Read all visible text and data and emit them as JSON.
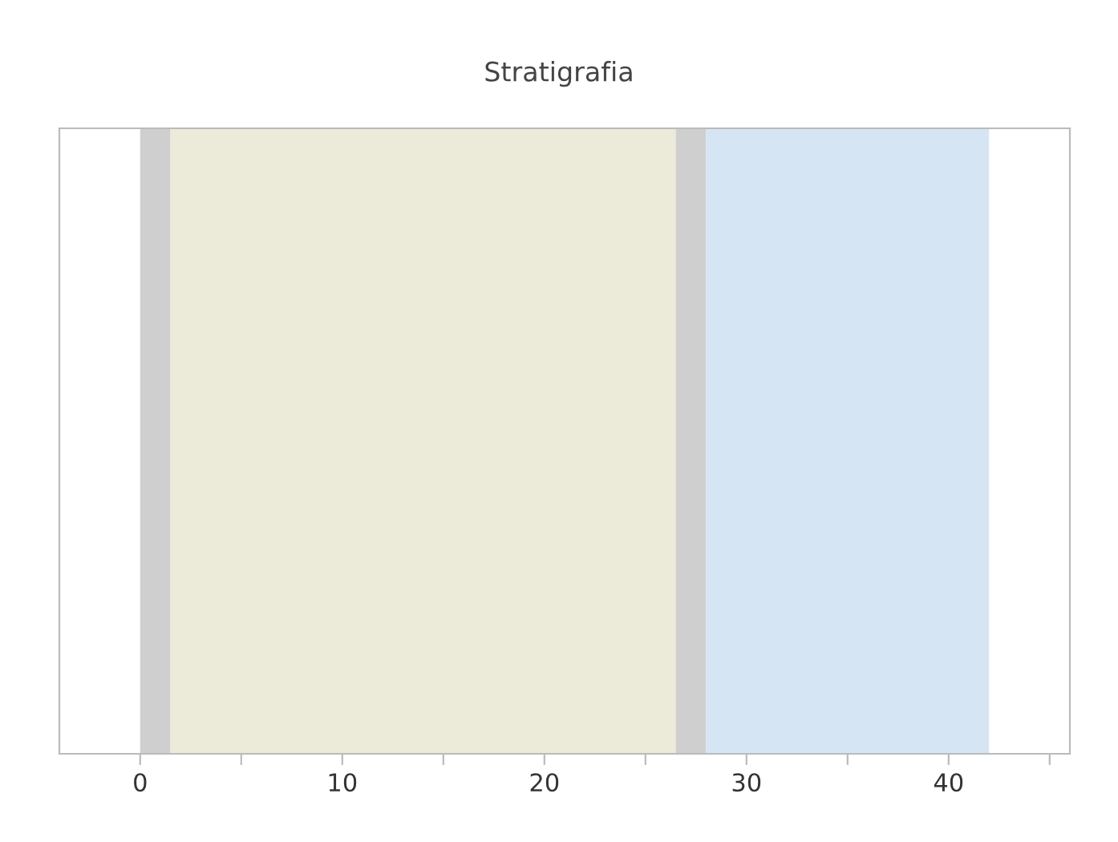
{
  "chart_data": {
    "type": "bar",
    "title": "Stratigrafia",
    "orientation": "horizontal",
    "stacked": true,
    "categories": [
      null
    ],
    "series": [
      {
        "color": "#cfcfcf",
        "values": [
          1.5
        ]
      },
      {
        "color": "#ecead8",
        "values": [
          25
        ]
      },
      {
        "color": "#cfcfcf",
        "values": [
          1.5
        ]
      },
      {
        "color": "#d5e5f3",
        "values": [
          14
        ]
      }
    ],
    "xlim": [
      -4,
      46
    ],
    "xticks": [
      0,
      {
        "value": 5,
        "label": null
      },
      10,
      {
        "value": 15,
        "label": null
      },
      20,
      {
        "value": 25,
        "label": null
      },
      30,
      {
        "value": 35,
        "label": null
      },
      40,
      {
        "value": 45,
        "label": null
      }
    ],
    "tick_labels": "x",
    "legend": false
  }
}
